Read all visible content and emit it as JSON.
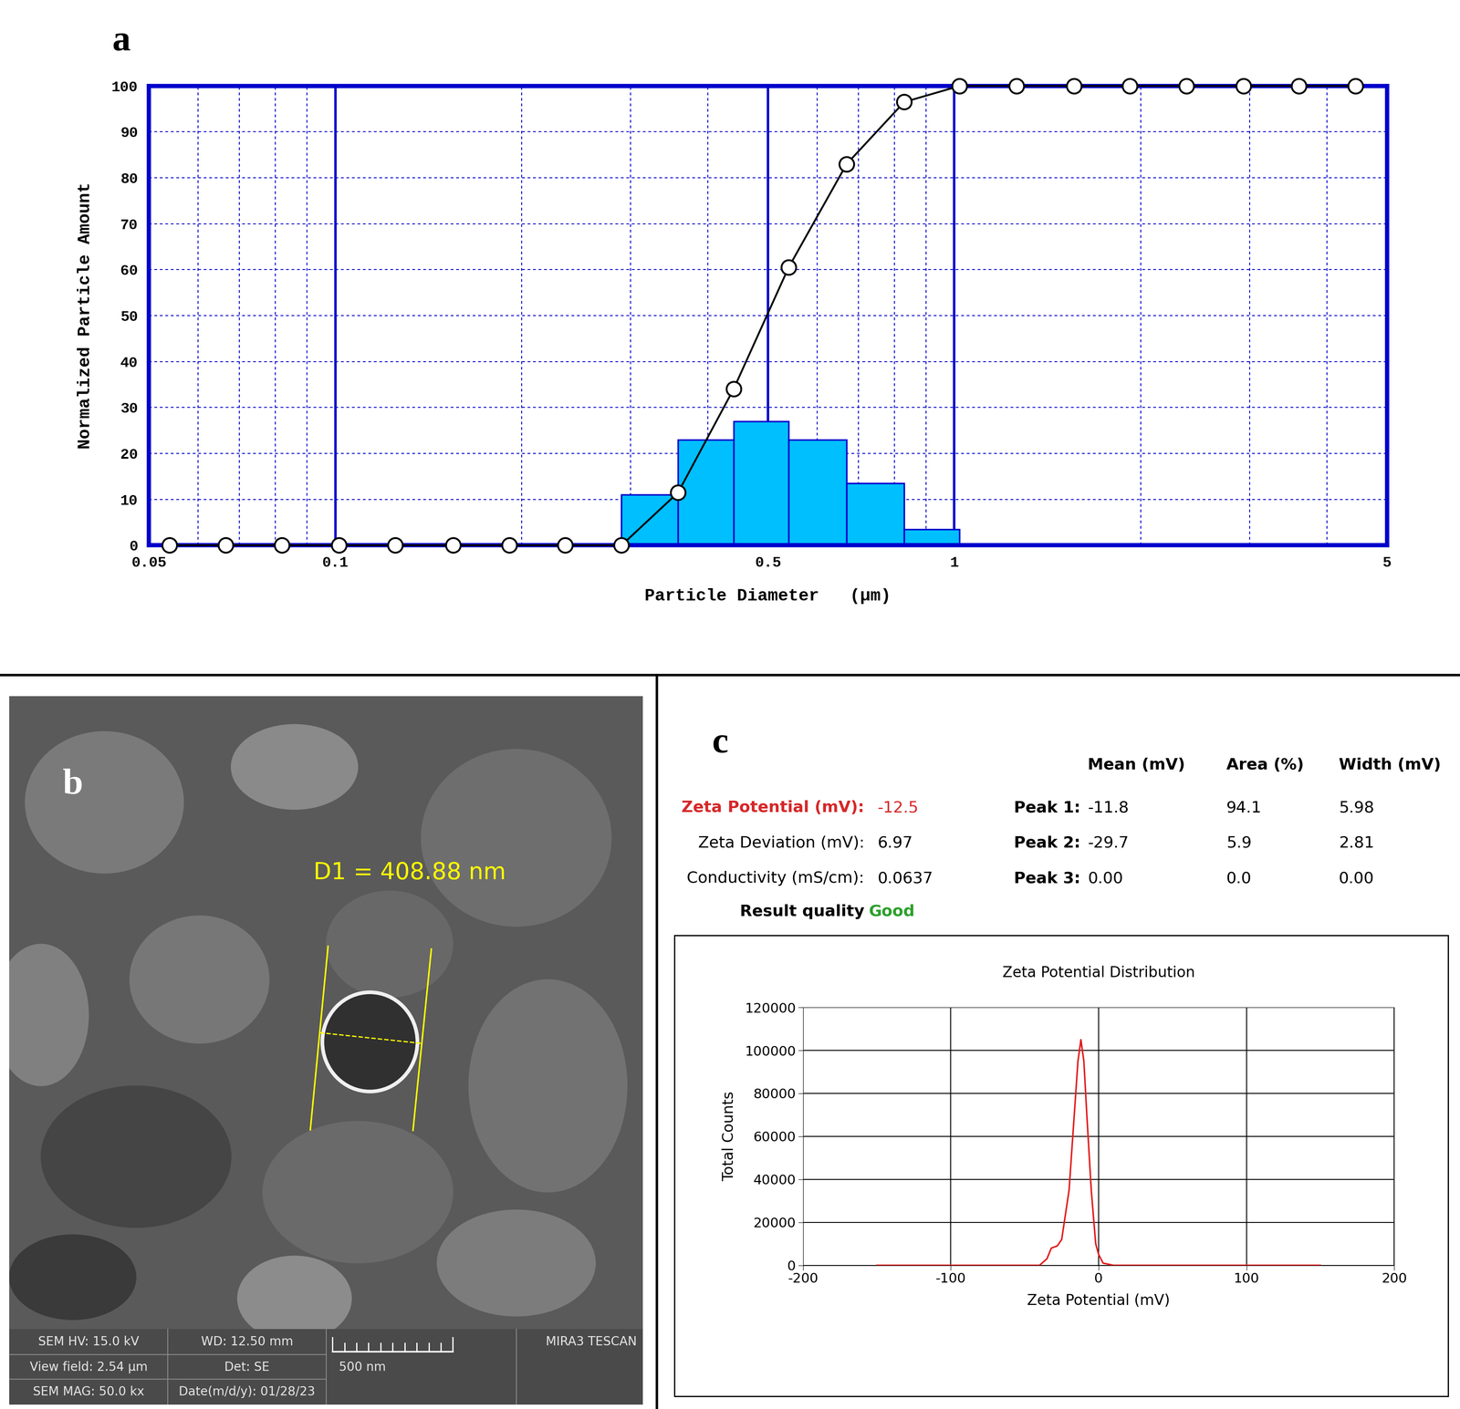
{
  "chart_data": [
    {
      "type": "histogram",
      "xlabel": "Particle Diameter   (µm)",
      "ylabel": "Normalized Particle Amount",
      "log": "x",
      "bins": [
        0.29,
        0.358,
        0.44,
        0.54,
        0.67,
        0.83,
        1.02
      ],
      "counts": [
        11,
        23,
        27,
        23,
        13.5,
        3.5
      ],
      "color": "#00bfff",
      "xlim": [
        0.05,
        5
      ],
      "xticks": [
        0.05,
        0.1,
        0.5,
        1,
        5
      ],
      "ylim": [
        0,
        100
      ],
      "yticks": [
        0,
        10,
        20,
        30,
        40,
        50,
        60,
        70,
        80,
        90,
        100
      ],
      "grid": true,
      "line": {
        "type": "line",
        "color": "#000000",
        "marker": "o",
        "x": [
          0.054,
          0.0665,
          0.082,
          0.1014,
          0.125,
          0.155,
          0.191,
          0.235,
          0.29,
          0.358,
          0.44,
          0.54,
          0.67,
          0.83,
          1.02,
          1.26,
          1.56,
          1.92,
          2.37,
          2.93,
          3.6,
          4.45
        ],
        "values": [
          0,
          0,
          0,
          0,
          0,
          0,
          0,
          0,
          0,
          11.5,
          34,
          60.5,
          83,
          96.5,
          100,
          100,
          100,
          100,
          100,
          100,
          100,
          100
        ]
      }
    },
    {
      "type": "line",
      "title": "Zeta Potential Distribution",
      "xlabel": "Zeta Potential (mV)",
      "ylabel": "Total Counts",
      "x": [
        -150,
        -40,
        -35,
        -32,
        -28,
        -25,
        -20,
        -16,
        -14,
        -12,
        -10,
        -8,
        -5,
        -2,
        0,
        3,
        10,
        150
      ],
      "values": [
        0,
        0,
        3000,
        8000,
        9000,
        12000,
        35000,
        75000,
        95000,
        105000,
        95000,
        70000,
        35000,
        10000,
        5000,
        1000,
        0,
        0
      ],
      "color": "#e41a1c",
      "xlim": [
        -200,
        200
      ],
      "xticks": [
        -200,
        -100,
        0,
        100,
        200
      ],
      "ylim": [
        0,
        120000
      ],
      "yticks": [
        0,
        20000,
        40000,
        60000,
        80000,
        100000,
        120000
      ],
      "grid": true
    }
  ],
  "panels": [
    "a",
    "b",
    "c"
  ],
  "sem_image": {
    "measurement": "D1 = 408.88 nm",
    "scale_bar": "500 nm",
    "info_bar": [
      [
        "SEM HV: 15.0 kV",
        "WD: 12.50 mm",
        "MIRA3 TESCAN"
      ],
      [
        "View field: 2.54 µm",
        "Det: SE"
      ],
      [
        "SEM MAG: 50.0 kx",
        "Date(m/d/y): 01/28/23"
      ]
    ]
  },
  "zeta_report": {
    "summary": [
      {
        "label": "Zeta Potential (mV):",
        "value": "-12.5"
      },
      {
        "label": "Zeta Deviation (mV):",
        "value": "6.97"
      },
      {
        "label": "Conductivity (mS/cm):",
        "value": "0.0637"
      }
    ],
    "result_quality": {
      "label": "Result quality",
      "value": "Good"
    },
    "peaks": {
      "columns": [
        "Mean (mV)",
        "Area (%)",
        "Width (mV)"
      ],
      "rows": [
        {
          "name": "Peak 1:",
          "values": [
            "-11.8",
            "94.1",
            "5.98"
          ]
        },
        {
          "name": "Peak 2:",
          "values": [
            "-29.7",
            "5.9",
            "2.81"
          ]
        },
        {
          "name": "Peak 3:",
          "values": [
            "0.00",
            "0.0",
            "0.00"
          ]
        }
      ]
    }
  }
}
